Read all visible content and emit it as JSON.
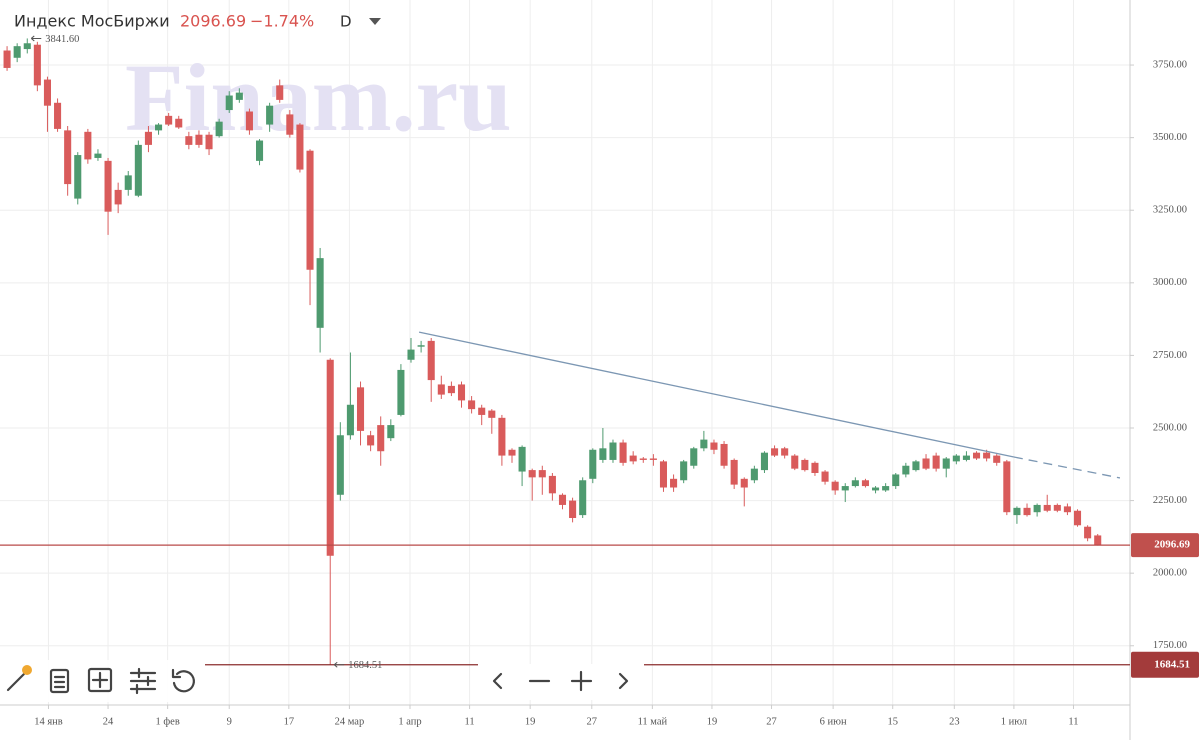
{
  "chart_data": {
    "type": "candlestick",
    "title": "Индекс МосБиржи",
    "price_line": 2096.69,
    "change": "−1.74%",
    "interval": "D",
    "watermark": "Finam.ru",
    "up_color": "#4e9a6f",
    "down_color": "#d95b5b",
    "grid": true,
    "xlim": [
      -0.7,
      110.9
    ],
    "xticks": [
      {
        "value": 4.1,
        "label": "14 янв"
      },
      {
        "value": 10,
        "label": "24"
      },
      {
        "value": 15.9,
        "label": "1 фев"
      },
      {
        "value": 22,
        "label": "9"
      },
      {
        "value": 27.9,
        "label": "17"
      },
      {
        "value": 33.9,
        "label": "24 мар"
      },
      {
        "value": 39.9,
        "label": "1 апр"
      },
      {
        "value": 45.8,
        "label": "11"
      },
      {
        "value": 51.8,
        "label": "19"
      },
      {
        "value": 57.9,
        "label": "27"
      },
      {
        "value": 63.9,
        "label": "11 май"
      },
      {
        "value": 69.8,
        "label": "19"
      },
      {
        "value": 75.7,
        "label": "27"
      },
      {
        "value": 81.8,
        "label": "6 июн"
      },
      {
        "value": 87.7,
        "label": "15"
      },
      {
        "value": 93.8,
        "label": "23"
      },
      {
        "value": 99.7,
        "label": "1 июл"
      },
      {
        "value": 105.6,
        "label": "11"
      }
    ],
    "ylim": [
      1546,
      3974
    ],
    "yticks": [
      {
        "value": 1750,
        "label": "1750.00"
      },
      {
        "value": 2000,
        "label": "2000.00"
      },
      {
        "value": 2250,
        "label": "2250.00"
      },
      {
        "value": 2500,
        "label": "2500.00"
      },
      {
        "value": 2750,
        "label": "2750.00"
      },
      {
        "value": 3000,
        "label": "3000.00"
      },
      {
        "value": 3250,
        "label": "3250.00"
      },
      {
        "value": 3500,
        "label": "3500.00"
      },
      {
        "value": 3750,
        "label": "3750.00"
      }
    ],
    "open": [
      3800,
      3775,
      3805,
      3820,
      3700,
      3620,
      3525,
      3290,
      3520,
      3430,
      3420,
      3320,
      3320,
      3300,
      3520,
      3525,
      3575,
      3565,
      3505,
      3510,
      3510,
      3505,
      3595,
      3630,
      3590,
      3420,
      3545,
      3680,
      3580,
      3545,
      3455,
      2845,
      2735,
      2270,
      2475,
      2640,
      2475,
      2510,
      2465,
      2545,
      2735,
      2780,
      2800,
      2650,
      2645,
      2650,
      2595,
      2570,
      2560,
      2535,
      2425,
      2350,
      2355,
      2355,
      2335,
      2270,
      2250,
      2200,
      2325,
      2390,
      2390,
      2450,
      2405,
      2395,
      2395,
      2385,
      2325,
      2320,
      2370,
      2430,
      2450,
      2445,
      2390,
      2325,
      2320,
      2355,
      2430,
      2430,
      2405,
      2390,
      2380,
      2350,
      2315,
      2285,
      2300,
      2320,
      2285,
      2285,
      2300,
      2340,
      2355,
      2395,
      2405,
      2360,
      2385,
      2390,
      2415,
      2415,
      2405,
      2385,
      2200,
      2225,
      2210,
      2235,
      2235,
      2230,
      2215,
      2160,
      2130
    ],
    "high": [
      3815,
      3825,
      3841.6,
      3830,
      3710,
      3635,
      3540,
      3450,
      3530,
      3460,
      3430,
      3345,
      3385,
      3490,
      3540,
      3550,
      3585,
      3575,
      3520,
      3525,
      3520,
      3565,
      3660,
      3670,
      3600,
      3495,
      3620,
      3700,
      3595,
      3550,
      3460,
      3120,
      2740,
      2520,
      2760,
      2660,
      2490,
      2540,
      2530,
      2720,
      2810,
      2800,
      2810,
      2680,
      2660,
      2660,
      2610,
      2580,
      2565,
      2545,
      2430,
      2440,
      2360,
      2370,
      2345,
      2275,
      2260,
      2330,
      2430,
      2500,
      2460,
      2460,
      2420,
      2400,
      2410,
      2390,
      2340,
      2390,
      2435,
      2490,
      2460,
      2455,
      2395,
      2330,
      2370,
      2420,
      2440,
      2435,
      2410,
      2395,
      2385,
      2355,
      2320,
      2310,
      2330,
      2325,
      2300,
      2310,
      2345,
      2380,
      2390,
      2410,
      2415,
      2400,
      2410,
      2420,
      2420,
      2425,
      2410,
      2390,
      2230,
      2240,
      2240,
      2270,
      2240,
      2240,
      2220,
      2165,
      2135
    ],
    "low": [
      3730,
      3760,
      3790,
      3660,
      3520,
      3520,
      3300,
      3270,
      3410,
      3420,
      3165,
      3240,
      3300,
      3295,
      3450,
      3510,
      3540,
      3530,
      3460,
      3465,
      3440,
      3500,
      3585,
      3620,
      3510,
      3405,
      3520,
      3620,
      3500,
      3380,
      2923,
      2760,
      1684.51,
      2250,
      2460,
      2440,
      2420,
      2370,
      2455,
      2540,
      2725,
      2760,
      2590,
      2600,
      2610,
      2570,
      2550,
      2510,
      2480,
      2370,
      2380,
      2300,
      2250,
      2270,
      2250,
      2220,
      2175,
      2190,
      2310,
      2380,
      2380,
      2370,
      2375,
      2380,
      2370,
      2280,
      2280,
      2310,
      2360,
      2420,
      2410,
      2360,
      2290,
      2230,
      2310,
      2345,
      2400,
      2395,
      2355,
      2350,
      2335,
      2305,
      2270,
      2245,
      2295,
      2295,
      2275,
      2280,
      2290,
      2330,
      2350,
      2355,
      2350,
      2330,
      2375,
      2385,
      2390,
      2385,
      2370,
      2200,
      2170,
      2195,
      2195,
      2210,
      2210,
      2200,
      2160,
      2110,
      2095
    ],
    "close": [
      3740,
      3815,
      3825,
      3680,
      3610,
      3530,
      3340,
      3440,
      3425,
      3445,
      3245,
      3270,
      3370,
      3475,
      3475,
      3545,
      3545,
      3535,
      3475,
      3475,
      3460,
      3555,
      3645,
      3655,
      3525,
      3490,
      3610,
      3630,
      3510,
      3390,
      3045,
      3085,
      2060,
      2475,
      2580,
      2490,
      2440,
      2420,
      2510,
      2700,
      2770,
      2785,
      2665,
      2615,
      2620,
      2595,
      2565,
      2545,
      2535,
      2405,
      2405,
      2435,
      2330,
      2330,
      2275,
      2235,
      2190,
      2320,
      2425,
      2430,
      2450,
      2380,
      2385,
      2390,
      2390,
      2295,
      2295,
      2385,
      2430,
      2460,
      2425,
      2370,
      2305,
      2295,
      2360,
      2415,
      2405,
      2405,
      2360,
      2355,
      2345,
      2315,
      2285,
      2300,
      2320,
      2300,
      2295,
      2300,
      2340,
      2370,
      2385,
      2360,
      2360,
      2395,
      2405,
      2405,
      2395,
      2395,
      2380,
      2210,
      2225,
      2200,
      2235,
      2215,
      2215,
      2210,
      2165,
      2120,
      2096.69
    ],
    "high_marker": {
      "value": 3841.6,
      "label": "3841.60"
    },
    "low_marker": {
      "value": 1684.51,
      "label": "1684.51"
    },
    "trendline": {
      "x": [
        40.8,
        99.7,
        110.2
      ],
      "y": [
        2830,
        2400,
        2328
      ],
      "color": "#7c97b3"
    }
  }
}
